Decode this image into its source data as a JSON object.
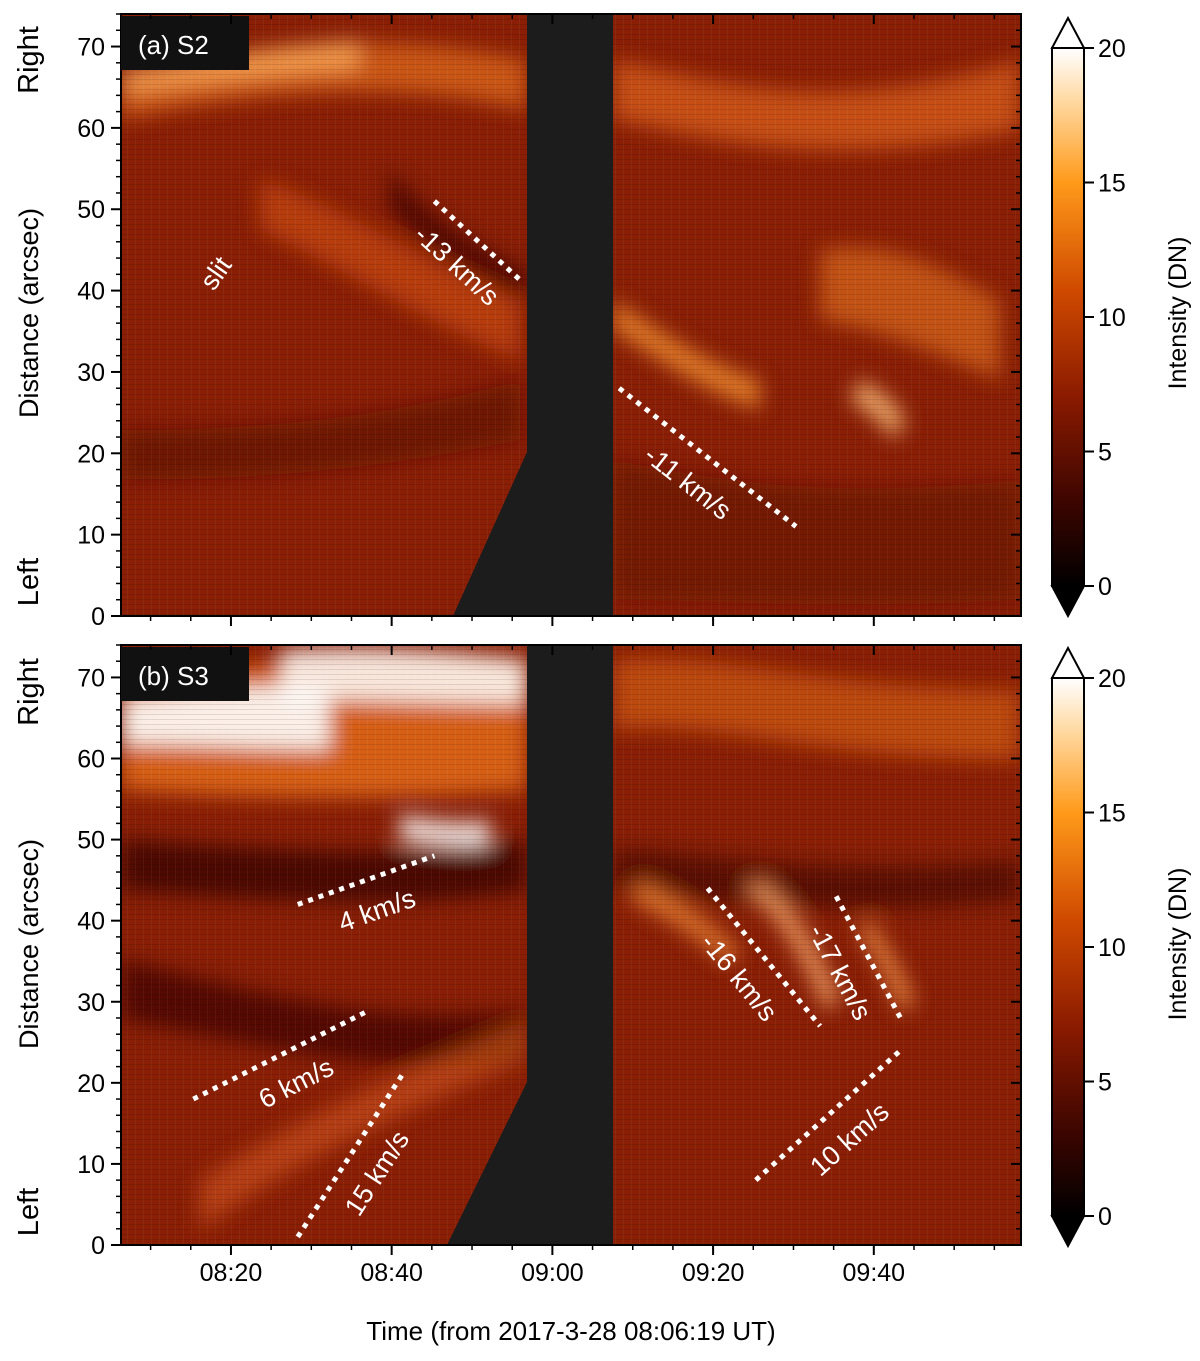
{
  "figure": {
    "xlabel": "Time (from 2017-3-28 08:06:19 UT)",
    "x_ticks": [
      "08:20",
      "08:40",
      "09:00",
      "09:20",
      "09:40"
    ],
    "colorbar_label": "Intensity (DN)"
  },
  "chart_data": [
    {
      "type": "heatmap",
      "panel_label": "(a) S2",
      "ylabel": "Distance (arcsec)",
      "y_end_labels": {
        "top": "Right",
        "bottom": "Left"
      },
      "xlim_minutes": [
        0,
        112
      ],
      "ylim": [
        0,
        74
      ],
      "y_ticks": [
        0,
        10,
        20,
        30,
        40,
        50,
        60,
        70
      ],
      "colorbar": {
        "min": 0,
        "max": 20,
        "ticks": [
          0,
          5,
          10,
          15,
          20
        ],
        "extend": "both"
      },
      "data_gap_minutes": [
        50.5,
        61.0
      ],
      "annotations": [
        {
          "text": "slit"
        },
        {
          "text": "-13 km/s",
          "line": {
            "t": [
              39,
              50
            ],
            "d": [
              51,
              41
            ]
          }
        },
        {
          "text": "-11 km/s",
          "line": {
            "t": [
              62,
              84
            ],
            "d": [
              28,
              11
            ]
          }
        }
      ]
    },
    {
      "type": "heatmap",
      "panel_label": "(b) S3",
      "ylabel": "Distance (arcsec)",
      "y_end_labels": {
        "top": "Right",
        "bottom": "Left"
      },
      "xlim_minutes": [
        0,
        112
      ],
      "ylim": [
        0,
        74
      ],
      "y_ticks": [
        0,
        10,
        20,
        30,
        40,
        50,
        60,
        70
      ],
      "colorbar": {
        "min": 0,
        "max": 20,
        "ticks": [
          0,
          5,
          10,
          15,
          20
        ],
        "extend": "both"
      },
      "data_gap_minutes": [
        50.5,
        61.0
      ],
      "annotations": [
        {
          "text": "4 km/s",
          "line": {
            "t": [
              22,
              39
            ],
            "d": [
              42,
              48
            ]
          }
        },
        {
          "text": "6 km/s",
          "line": {
            "t": [
              9,
              31
            ],
            "d": [
              18,
              29
            ]
          }
        },
        {
          "text": "15 km/s",
          "line": {
            "t": [
              22,
              35
            ],
            "d": [
              1,
              21
            ]
          }
        },
        {
          "text": "-16 km/s",
          "line": {
            "t": [
              73,
              87
            ],
            "d": [
              44,
              27
            ]
          }
        },
        {
          "text": "-17 km/s",
          "line": {
            "t": [
              89,
              97
            ],
            "d": [
              43,
              28
            ]
          }
        },
        {
          "text": "10 km/s",
          "line": {
            "t": [
              79,
              97
            ],
            "d": [
              8,
              24
            ]
          }
        }
      ]
    }
  ]
}
